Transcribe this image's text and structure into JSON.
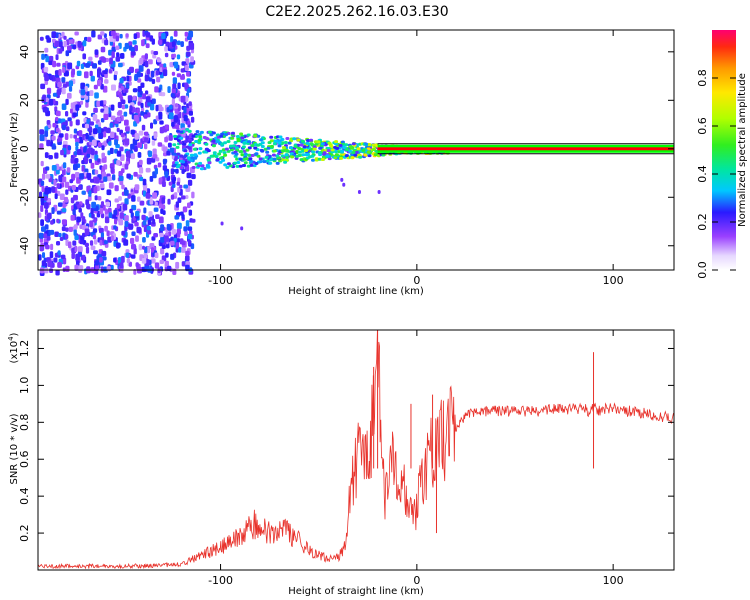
{
  "title": "C2E2.2025.262.16.03.E30",
  "chart_data": [
    {
      "type": "heatmap",
      "name": "spectrogram",
      "xlabel": "Height of straight line (km)",
      "ylabel": "Frequency (Hz)",
      "xlim": [
        -193,
        131
      ],
      "ylim": [
        -50,
        49
      ],
      "xticks": [
        -100,
        0,
        100
      ],
      "xtick_labels": [
        "-100",
        "0",
        "100"
      ],
      "yticks": [
        -40,
        -20,
        0,
        20,
        40
      ],
      "ytick_labels": [
        "-40",
        "-20",
        "0",
        "20",
        "40"
      ],
      "noise_region": {
        "x_from": -193,
        "x_to": -118,
        "amplitude": 0.22
      },
      "carrier": {
        "frequency_hz": 0,
        "x_from": -20,
        "x_to": 131,
        "amplitude": 0.95
      },
      "colorbar": {
        "label": "Normalized spectral amplitude",
        "range": [
          0,
          1
        ],
        "ticks": [
          0.0,
          0.2,
          0.4,
          0.6,
          0.8
        ],
        "tick_labels": [
          "0.0",
          "0.2",
          "0.4",
          "0.6",
          "0.8"
        ]
      },
      "colors": {
        "carrier_line": "#00ff00",
        "carrier_core": "#ff0000",
        "noise": "#7a00ff"
      }
    },
    {
      "type": "line",
      "name": "snr",
      "xlabel": "Height of straight line (km)",
      "ylabel": "SNR (10 * v/v)",
      "scale_label": "(x10",
      "scale_exponent": "4",
      "scale_suffix": ")",
      "xlim": [
        -193,
        131
      ],
      "ylim": [
        0,
        1.3
      ],
      "xticks": [
        -100,
        0,
        100
      ],
      "xtick_labels": [
        "-100",
        "0",
        "100"
      ],
      "yticks": [
        0.2,
        0.4,
        0.6,
        0.8,
        1.0,
        1.2
      ],
      "ytick_labels": [
        "0.2",
        "0.4",
        "0.6",
        "0.8",
        "1.0",
        "1.2"
      ],
      "color": "#e8322b",
      "series": [
        {
          "name": "SNR",
          "x": [
            -193,
            -150,
            -120,
            -110,
            -100,
            -90,
            -85,
            -80,
            -75,
            -70,
            -65,
            -60,
            -55,
            -50,
            -45,
            -40,
            -38,
            -36,
            -34,
            -32,
            -30,
            -28,
            -26,
            -24,
            -22,
            -20,
            -19,
            -18,
            -16,
            -14,
            -12,
            -10,
            -8,
            -6,
            -4,
            -2,
            0,
            2,
            4,
            6,
            8,
            10,
            12,
            14,
            16,
            18,
            20,
            22,
            25,
            30,
            35,
            40,
            50,
            60,
            70,
            80,
            85,
            88,
            90,
            92,
            95,
            100,
            105,
            110,
            115,
            120,
            125,
            131
          ],
          "y": [
            0.02,
            0.02,
            0.03,
            0.08,
            0.12,
            0.18,
            0.22,
            0.27,
            0.2,
            0.24,
            0.19,
            0.16,
            0.1,
            0.08,
            0.06,
            0.07,
            0.1,
            0.14,
            0.4,
            0.5,
            0.6,
            0.55,
            0.65,
            0.6,
            0.9,
            1.28,
            1.0,
            0.5,
            0.4,
            0.55,
            0.6,
            0.5,
            0.4,
            0.45,
            0.3,
            0.3,
            0.32,
            0.48,
            0.55,
            0.6,
            0.62,
            0.65,
            0.7,
            0.7,
            0.75,
            0.73,
            0.78,
            0.8,
            0.83,
            0.86,
            0.86,
            0.86,
            0.86,
            0.86,
            0.87,
            0.87,
            0.88,
            0.85,
            0.88,
            0.86,
            0.87,
            0.88,
            0.86,
            0.86,
            0.85,
            0.84,
            0.83,
            0.82
          ]
        }
      ]
    }
  ]
}
